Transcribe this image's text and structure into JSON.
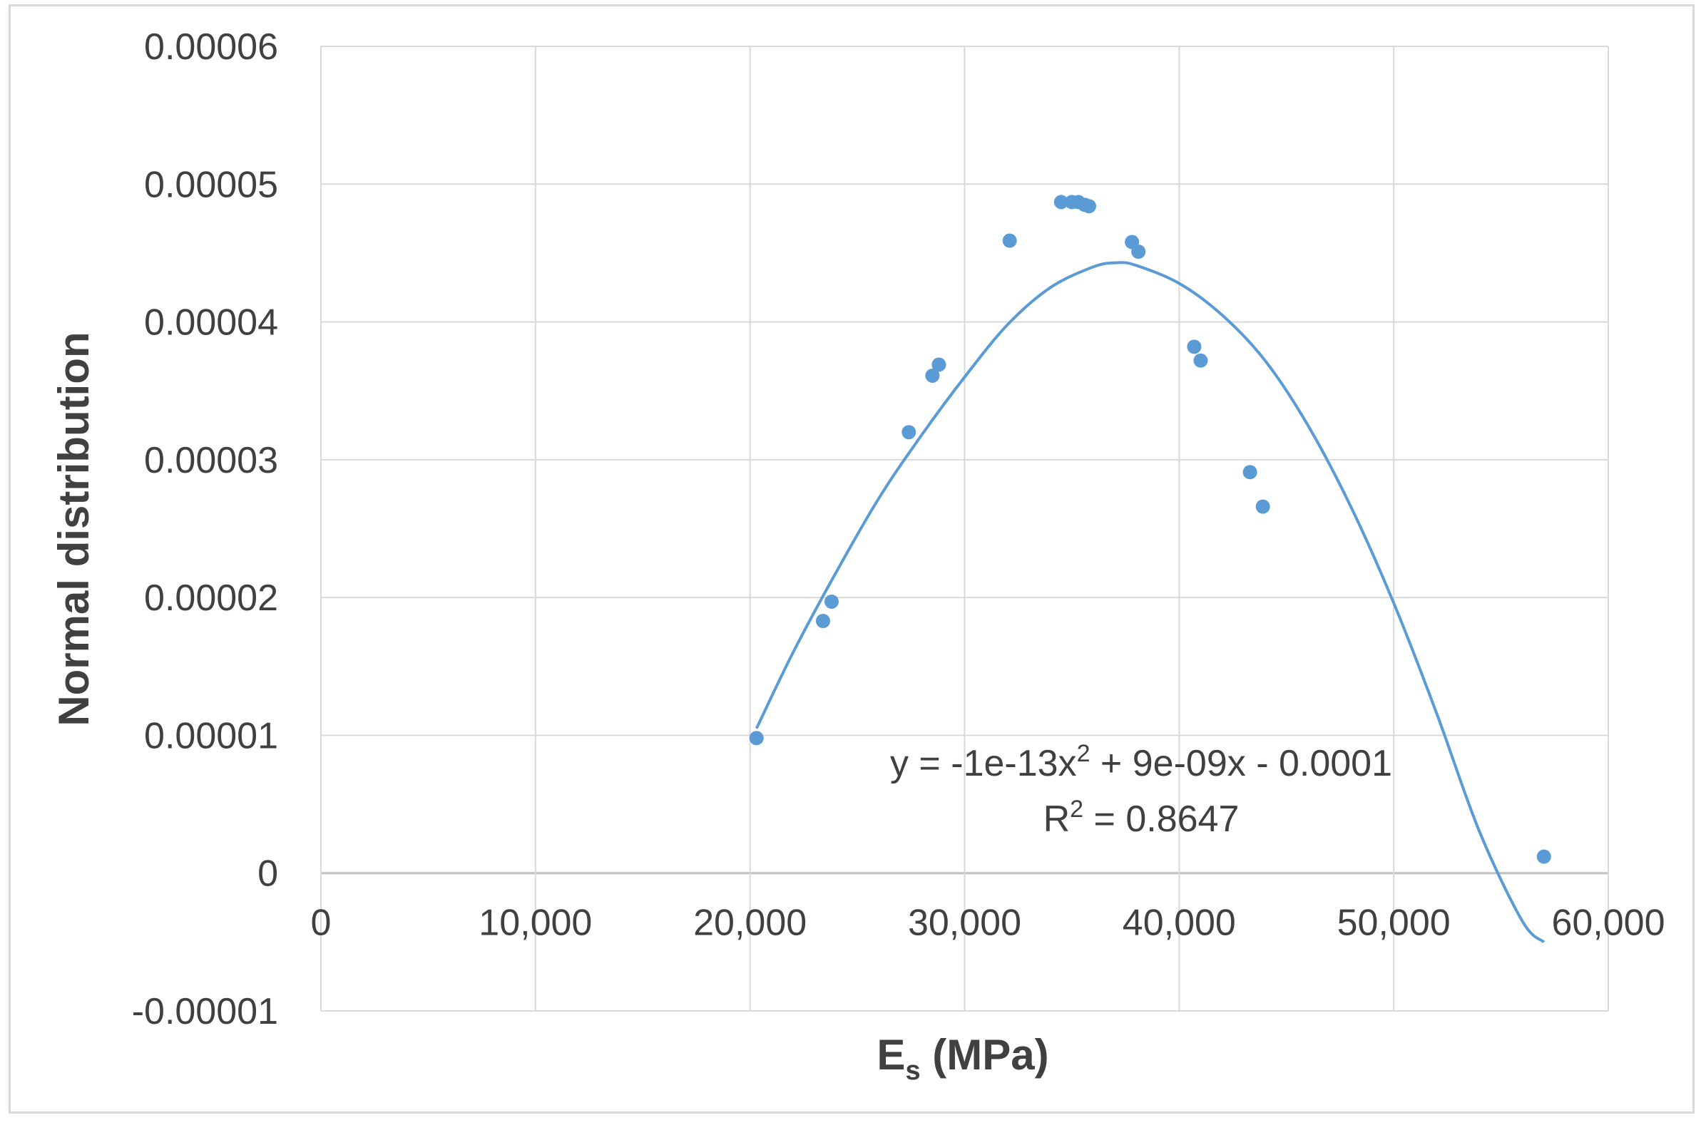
{
  "chart_data": {
    "type": "scatter",
    "xlabel": {
      "main": "E",
      "sub": "s",
      "suffix": " (MPa)"
    },
    "ylabel": "Normal distribution",
    "xlim": [
      0,
      60000
    ],
    "ylim": [
      -1e-05,
      6e-05
    ],
    "x_ticks": [
      0,
      10000,
      20000,
      30000,
      40000,
      50000,
      60000
    ],
    "x_tick_labels": [
      "0",
      "10,000",
      "20,000",
      "30,000",
      "40,000",
      "50,000",
      "60,000"
    ],
    "y_ticks": [
      -1e-05,
      0,
      1e-05,
      2e-05,
      3e-05,
      4e-05,
      5e-05,
      6e-05
    ],
    "y_tick_labels": [
      "-0.00001",
      "0",
      "0.00001",
      "0.00002",
      "0.00003",
      "0.00004",
      "0.00005",
      "0.00006"
    ],
    "grid": true,
    "series": [
      {
        "type": "scatter",
        "color": "#5b9bd5",
        "x": [
          20300,
          23400,
          23800,
          27400,
          28500,
          28800,
          32100,
          34500,
          35000,
          35300,
          35600,
          35800,
          37800,
          38100,
          40700,
          41000,
          43300,
          43900,
          57000
        ],
        "y": [
          9.8e-06,
          1.83e-05,
          1.97e-05,
          3.2e-05,
          3.61e-05,
          3.69e-05,
          4.59e-05,
          4.87e-05,
          4.87e-05,
          4.87e-05,
          4.85e-05,
          4.84e-05,
          4.58e-05,
          4.51e-05,
          3.82e-05,
          3.72e-05,
          2.91e-05,
          2.66e-05,
          1.2e-06
        ]
      },
      {
        "type": "trendline",
        "color": "#5b9bd5",
        "x": [
          20300,
          22000,
          24000,
          26000,
          28000,
          30000,
          32000,
          34000,
          36000,
          37100,
          38000,
          40000,
          42000,
          44000,
          46000,
          48000,
          50000,
          52000,
          54000,
          56000,
          57000
        ],
        "y": [
          1.05e-05,
          1.6e-05,
          2.18e-05,
          2.72e-05,
          3.18e-05,
          3.6e-05,
          3.98e-05,
          4.25e-05,
          4.4e-05,
          4.43e-05,
          4.41e-05,
          4.28e-05,
          4.05e-05,
          3.72e-05,
          3.25e-05,
          2.66e-05,
          1.96e-05,
          1.16e-05,
          3e-06,
          -3.5e-06,
          -5e-06
        ]
      }
    ],
    "annotations": [
      {
        "parts": [
          {
            "text": "y = -1e-13x"
          },
          {
            "text": "2",
            "sup": true
          },
          {
            "text": " + 9e-09x - 0.0001"
          }
        ]
      },
      {
        "parts": [
          {
            "text": "R"
          },
          {
            "text": "2",
            "sup": true
          },
          {
            "text": " = 0.8647"
          }
        ]
      }
    ]
  }
}
